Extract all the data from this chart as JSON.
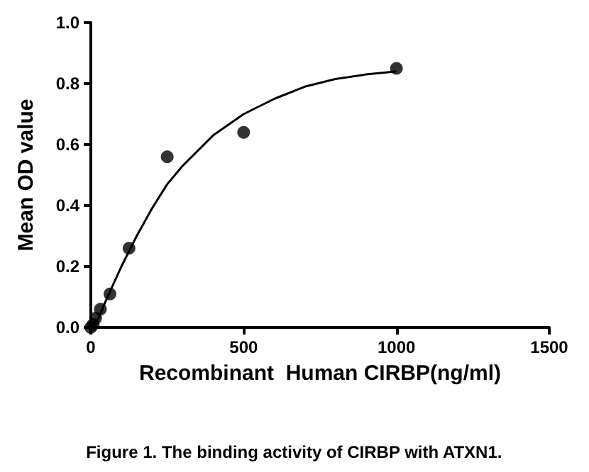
{
  "chart_data": {
    "type": "scatter",
    "xlabel": "Recombinant  Human CIRBP(ng/ml)",
    "ylabel": "Mean OD value",
    "annotations": [
      "Figure 1. The binding activity of CIRBP with ATXN1."
    ],
    "series": [
      {
        "color": "#000000",
        "marker": "circle",
        "x": [
          0,
          3.9,
          7.8,
          15.6,
          31.25,
          62.5,
          125,
          250,
          500,
          1000
        ],
        "values": [
          0,
          null,
          0.01,
          0.03,
          0.06,
          0.11,
          0.26,
          0.56,
          0.64,
          0.85
        ]
      },
      {
        "type": "line",
        "color": "#000000",
        "marker": "none",
        "x": [
          0,
          25,
          50,
          100,
          150,
          200,
          250,
          300,
          400,
          500,
          600,
          700,
          800,
          900,
          1000
        ],
        "values": [
          0,
          0.03,
          0.09,
          0.2,
          0.3,
          0.39,
          0.47,
          0.53,
          0.63,
          0.7,
          0.75,
          0.79,
          0.815,
          0.83,
          0.84
        ]
      }
    ],
    "xlim": [
      0,
      1500
    ],
    "xticks": [
      0,
      500,
      1000,
      1500
    ],
    "ylim": [
      0,
      1.0
    ],
    "yticks": [
      {
        "value": 0,
        "label": "0.0"
      },
      0.2,
      0.4,
      0.6,
      0.8,
      {
        "value": 1,
        "label": "1.0"
      }
    ],
    "grid": false
  }
}
